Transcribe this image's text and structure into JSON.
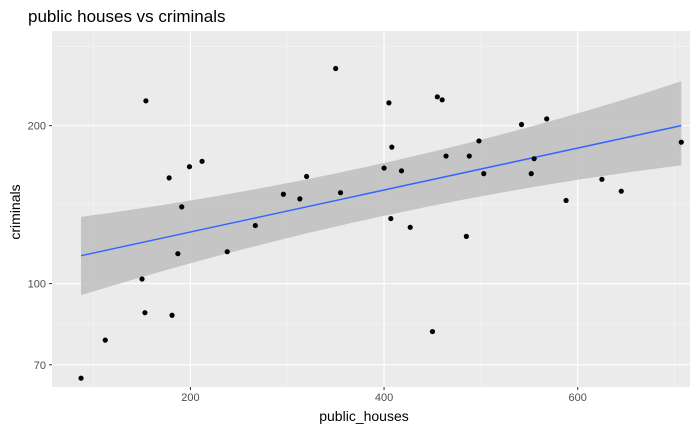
{
  "chart_data": {
    "type": "scatter",
    "title": "public houses vs criminals",
    "xlabel": "public_houses",
    "ylabel": "criminals",
    "x_ticks": [
      200,
      400,
      600
    ],
    "y_ticks": [
      70,
      100,
      200
    ],
    "y_scale": "log",
    "xlim": [
      57,
      716
    ],
    "ylim": [
      63.5,
      303
    ],
    "grid": true,
    "points": [
      {
        "x": 87,
        "y": 66
      },
      {
        "x": 112,
        "y": 78
      },
      {
        "x": 150,
        "y": 102
      },
      {
        "x": 153,
        "y": 88
      },
      {
        "x": 154,
        "y": 223
      },
      {
        "x": 178,
        "y": 159
      },
      {
        "x": 181,
        "y": 87
      },
      {
        "x": 187,
        "y": 114
      },
      {
        "x": 191,
        "y": 140
      },
      {
        "x": 199,
        "y": 167
      },
      {
        "x": 212,
        "y": 171
      },
      {
        "x": 238,
        "y": 115
      },
      {
        "x": 267,
        "y": 129
      },
      {
        "x": 296,
        "y": 148
      },
      {
        "x": 313,
        "y": 145
      },
      {
        "x": 320,
        "y": 160
      },
      {
        "x": 350,
        "y": 257
      },
      {
        "x": 355,
        "y": 149
      },
      {
        "x": 400,
        "y": 166
      },
      {
        "x": 405,
        "y": 221
      },
      {
        "x": 407,
        "y": 133
      },
      {
        "x": 408,
        "y": 182
      },
      {
        "x": 418,
        "y": 164
      },
      {
        "x": 427,
        "y": 128
      },
      {
        "x": 450,
        "y": 81
      },
      {
        "x": 455,
        "y": 227
      },
      {
        "x": 460,
        "y": 224
      },
      {
        "x": 464,
        "y": 175
      },
      {
        "x": 485,
        "y": 123
      },
      {
        "x": 488,
        "y": 175
      },
      {
        "x": 498,
        "y": 187
      },
      {
        "x": 503,
        "y": 162
      },
      {
        "x": 542,
        "y": 201
      },
      {
        "x": 552,
        "y": 162
      },
      {
        "x": 555,
        "y": 173
      },
      {
        "x": 568,
        "y": 206
      },
      {
        "x": 588,
        "y": 144
      },
      {
        "x": 625,
        "y": 158
      },
      {
        "x": 645,
        "y": 150
      },
      {
        "x": 707,
        "y": 186
      }
    ],
    "smooth": {
      "method": "linear fit with confidence band",
      "x": [
        87,
        707
      ],
      "y": [
        113,
        200
      ],
      "ci_low": [
        95,
        168
      ],
      "ci_high": [
        134,
        243
      ]
    },
    "colors": {
      "panel": "#ebebeb",
      "grid_major": "#ffffff",
      "grid_minor": "#f5f5f5",
      "points": "#000000",
      "line": "#3366ff",
      "band": "#bebebe"
    }
  }
}
